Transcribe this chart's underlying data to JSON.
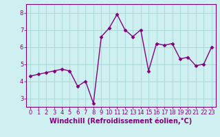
{
  "x": [
    0,
    1,
    2,
    3,
    4,
    5,
    6,
    7,
    8,
    9,
    10,
    11,
    12,
    13,
    14,
    15,
    16,
    17,
    18,
    19,
    20,
    21,
    22,
    23
  ],
  "y": [
    4.3,
    4.4,
    4.5,
    4.6,
    4.7,
    4.6,
    3.7,
    4.0,
    2.7,
    6.6,
    7.1,
    7.9,
    7.0,
    6.6,
    7.0,
    4.6,
    6.2,
    6.1,
    6.2,
    5.3,
    5.4,
    4.9,
    5.0,
    6.0
  ],
  "line_color": "#800080",
  "marker": "D",
  "marker_size": 2.5,
  "line_width": 1.0,
  "xlabel": "Windchill (Refroidissement éolien,°C)",
  "xlabel_fontsize": 7,
  "ylim": [
    2.5,
    8.5
  ],
  "xlim": [
    -0.5,
    23.5
  ],
  "yticks": [
    3,
    4,
    5,
    6,
    7,
    8
  ],
  "xticks": [
    0,
    1,
    2,
    3,
    4,
    5,
    6,
    7,
    8,
    9,
    10,
    11,
    12,
    13,
    14,
    15,
    16,
    17,
    18,
    19,
    20,
    21,
    22,
    23
  ],
  "tick_fontsize": 6,
  "background_color": "#cff0f0",
  "grid_color": "#aad8d8",
  "axes_color": "#800080",
  "spine_color": "#800080"
}
